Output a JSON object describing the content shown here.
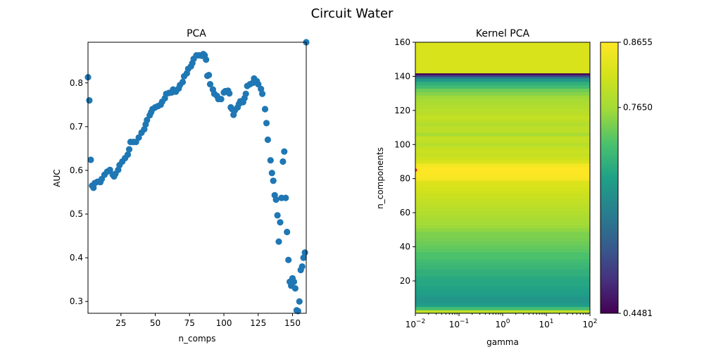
{
  "figure": {
    "suptitle": "Circuit Water"
  },
  "chart_data": [
    {
      "type": "scatter",
      "title": "PCA",
      "xlabel": "n_comps",
      "ylabel": "AUC",
      "xlim": [
        1,
        160
      ],
      "ylim": [
        0.273,
        0.893
      ],
      "xticks": [
        25,
        50,
        75,
        100,
        125,
        150
      ],
      "yticks": [
        0.3,
        0.4,
        0.5,
        0.6,
        0.7,
        0.8
      ],
      "color": "#1f77b4",
      "points": [
        [
          1,
          0.813
        ],
        [
          2,
          0.76
        ],
        [
          3,
          0.624
        ],
        [
          4,
          0.565
        ],
        [
          5,
          0.56
        ],
        [
          6,
          0.571
        ],
        [
          8,
          0.574
        ],
        [
          10,
          0.573
        ],
        [
          11,
          0.58
        ],
        [
          13,
          0.59
        ],
        [
          15,
          0.597
        ],
        [
          17,
          0.601
        ],
        [
          19,
          0.59
        ],
        [
          20,
          0.586
        ],
        [
          21,
          0.592
        ],
        [
          23,
          0.601
        ],
        [
          24,
          0.612
        ],
        [
          26,
          0.62
        ],
        [
          28,
          0.628
        ],
        [
          30,
          0.636
        ],
        [
          31,
          0.648
        ],
        [
          32,
          0.665
        ],
        [
          34,
          0.665
        ],
        [
          36,
          0.665
        ],
        [
          38,
          0.675
        ],
        [
          40,
          0.686
        ],
        [
          42,
          0.694
        ],
        [
          43,
          0.705
        ],
        [
          44,
          0.715
        ],
        [
          46,
          0.726
        ],
        [
          47,
          0.733
        ],
        [
          48,
          0.74
        ],
        [
          50,
          0.744
        ],
        [
          52,
          0.747
        ],
        [
          54,
          0.75
        ],
        [
          55,
          0.757
        ],
        [
          57,
          0.765
        ],
        [
          58,
          0.775
        ],
        [
          60,
          0.777
        ],
        [
          62,
          0.778
        ],
        [
          63,
          0.785
        ],
        [
          65,
          0.78
        ],
        [
          67,
          0.787
        ],
        [
          68,
          0.795
        ],
        [
          70,
          0.802
        ],
        [
          71,
          0.815
        ],
        [
          73,
          0.822
        ],
        [
          74,
          0.832
        ],
        [
          76,
          0.838
        ],
        [
          77,
          0.845
        ],
        [
          78,
          0.855
        ],
        [
          80,
          0.863
        ],
        [
          82,
          0.863
        ],
        [
          84,
          0.862
        ],
        [
          85,
          0.866
        ],
        [
          86,
          0.863
        ],
        [
          87,
          0.853
        ],
        [
          88,
          0.816
        ],
        [
          89,
          0.818
        ],
        [
          90,
          0.797
        ],
        [
          92,
          0.785
        ],
        [
          93,
          0.775
        ],
        [
          95,
          0.77
        ],
        [
          96,
          0.763
        ],
        [
          98,
          0.763
        ],
        [
          100,
          0.778
        ],
        [
          101,
          0.781
        ],
        [
          103,
          0.782
        ],
        [
          104,
          0.776
        ],
        [
          105,
          0.744
        ],
        [
          106,
          0.74
        ],
        [
          107,
          0.727
        ],
        [
          108,
          0.737
        ],
        [
          110,
          0.744
        ],
        [
          111,
          0.752
        ],
        [
          112,
          0.758
        ],
        [
          114,
          0.756
        ],
        [
          115,
          0.765
        ],
        [
          116,
          0.775
        ],
        [
          117,
          0.793
        ],
        [
          119,
          0.797
        ],
        [
          121,
          0.8
        ],
        [
          122,
          0.81
        ],
        [
          124,
          0.804
        ],
        [
          125,
          0.797
        ],
        [
          127,
          0.786
        ],
        [
          128,
          0.775
        ],
        [
          130,
          0.74
        ],
        [
          131,
          0.708
        ],
        [
          132,
          0.67
        ],
        [
          134,
          0.623
        ],
        [
          135,
          0.594
        ],
        [
          136,
          0.576
        ],
        [
          137,
          0.543
        ],
        [
          138,
          0.533
        ],
        [
          139,
          0.497
        ],
        [
          140,
          0.437
        ],
        [
          141,
          0.481
        ],
        [
          142,
          0.537
        ],
        [
          143,
          0.62
        ],
        [
          144,
          0.643
        ],
        [
          145,
          0.537
        ],
        [
          146,
          0.459
        ],
        [
          147,
          0.395
        ],
        [
          148,
          0.345
        ],
        [
          149,
          0.336
        ],
        [
          150,
          0.353
        ],
        [
          151,
          0.345
        ],
        [
          152,
          0.33
        ],
        [
          153,
          0.28
        ],
        [
          154,
          0.278
        ],
        [
          155,
          0.3
        ],
        [
          156,
          0.372
        ],
        [
          157,
          0.38
        ],
        [
          158,
          0.4
        ],
        [
          159,
          0.412
        ],
        [
          160,
          0.893
        ]
      ]
    },
    {
      "type": "heatmap",
      "title": "Kernel PCA",
      "xlabel": "gamma",
      "ylabel": "n_components",
      "xscale": "log",
      "xlim": [
        0.01,
        100
      ],
      "ylim": [
        1,
        160
      ],
      "xticks": [
        0.01,
        0.1,
        1,
        10,
        100
      ],
      "xtick_labels": [
        {
          "base": "10",
          "exp": "−2"
        },
        {
          "base": "10",
          "exp": "−1"
        },
        {
          "base": "10",
          "exp": "0"
        },
        {
          "base": "10",
          "exp": "1"
        },
        {
          "base": "10",
          "exp": "2"
        }
      ],
      "yticks": [
        20,
        40,
        60,
        80,
        100,
        120,
        140,
        160
      ],
      "colormap": "viridis",
      "colorbar": {
        "min": 0.4481,
        "max": 0.8655,
        "ticks": [
          "0.4481",
          "0.7650",
          "0.8655"
        ]
      },
      "marker": {
        "n_components": 85,
        "gamma": 0.01,
        "color": "#d62728"
      },
      "rows": [
        [
          1,
          0.78
        ],
        [
          2,
          0.8
        ],
        [
          3,
          0.7
        ],
        [
          5,
          0.65
        ],
        [
          7,
          0.64
        ],
        [
          9,
          0.64
        ],
        [
          11,
          0.65
        ],
        [
          13,
          0.655
        ],
        [
          15,
          0.66
        ],
        [
          17,
          0.665
        ],
        [
          19,
          0.665
        ],
        [
          21,
          0.67
        ],
        [
          23,
          0.68
        ],
        [
          25,
          0.68
        ],
        [
          27,
          0.69
        ],
        [
          29,
          0.695
        ],
        [
          31,
          0.7
        ],
        [
          33,
          0.71
        ],
        [
          35,
          0.71
        ],
        [
          37,
          0.72
        ],
        [
          39,
          0.725
        ],
        [
          41,
          0.73
        ],
        [
          43,
          0.735
        ],
        [
          45,
          0.74
        ],
        [
          47,
          0.74
        ],
        [
          49,
          0.75
        ],
        [
          51,
          0.76
        ],
        [
          53,
          0.765
        ],
        [
          55,
          0.77
        ],
        [
          57,
          0.775
        ],
        [
          59,
          0.78
        ],
        [
          61,
          0.785
        ],
        [
          63,
          0.79
        ],
        [
          65,
          0.795
        ],
        [
          67,
          0.8
        ],
        [
          69,
          0.805
        ],
        [
          71,
          0.81
        ],
        [
          73,
          0.815
        ],
        [
          75,
          0.82
        ],
        [
          77,
          0.825
        ],
        [
          79,
          0.855
        ],
        [
          81,
          0.862
        ],
        [
          83,
          0.865
        ],
        [
          85,
          0.865
        ],
        [
          87,
          0.855
        ],
        [
          89,
          0.82
        ],
        [
          91,
          0.81
        ],
        [
          93,
          0.8
        ],
        [
          95,
          0.805
        ],
        [
          97,
          0.8
        ],
        [
          99,
          0.785
        ],
        [
          101,
          0.795
        ],
        [
          103,
          0.8
        ],
        [
          105,
          0.77
        ],
        [
          107,
          0.79
        ],
        [
          109,
          0.79
        ],
        [
          111,
          0.78
        ],
        [
          113,
          0.79
        ],
        [
          115,
          0.8
        ],
        [
          117,
          0.79
        ],
        [
          119,
          0.785
        ],
        [
          121,
          0.78
        ],
        [
          123,
          0.775
        ],
        [
          125,
          0.77
        ],
        [
          127,
          0.76
        ],
        [
          129,
          0.745
        ],
        [
          131,
          0.73
        ],
        [
          133,
          0.7
        ],
        [
          135,
          0.68
        ],
        [
          137,
          0.64
        ],
        [
          139,
          0.58
        ],
        [
          140,
          0.52
        ],
        [
          141,
          0.45
        ],
        [
          142,
          0.82
        ],
        [
          160,
          0.82
        ]
      ]
    }
  ]
}
